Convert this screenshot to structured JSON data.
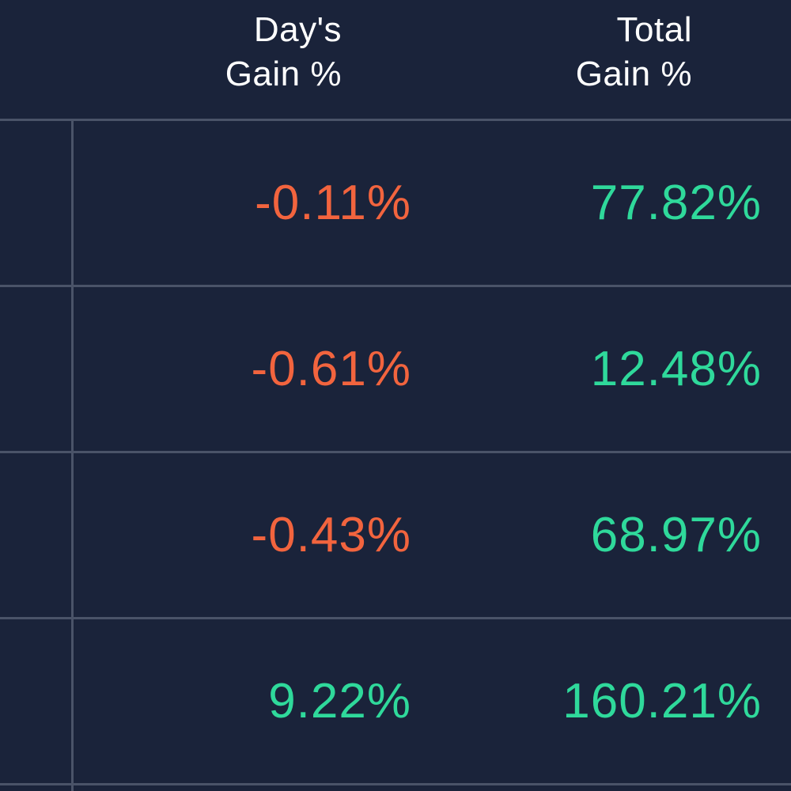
{
  "colors": {
    "background": "#1a233a",
    "divider": "#4a5368",
    "header_text": "#ffffff",
    "loss": "#f2643e",
    "gain": "#2fd99b"
  },
  "columns": {
    "days_gain": {
      "line1": "Day's",
      "line2": "Gain %"
    },
    "total_gain": {
      "line1": "Total",
      "line2": "Gain %"
    }
  },
  "rows": [
    {
      "days_gain": "-0.11%",
      "days_gain_trend": "loss",
      "total_gain": "77.82%",
      "total_gain_trend": "gain"
    },
    {
      "days_gain": "-0.61%",
      "days_gain_trend": "loss",
      "total_gain": "12.48%",
      "total_gain_trend": "gain"
    },
    {
      "days_gain": "-0.43%",
      "days_gain_trend": "loss",
      "total_gain": "68.97%",
      "total_gain_trend": "gain"
    },
    {
      "days_gain": "9.22%",
      "days_gain_trend": "gain",
      "total_gain": "160.21%",
      "total_gain_trend": "gain"
    }
  ]
}
